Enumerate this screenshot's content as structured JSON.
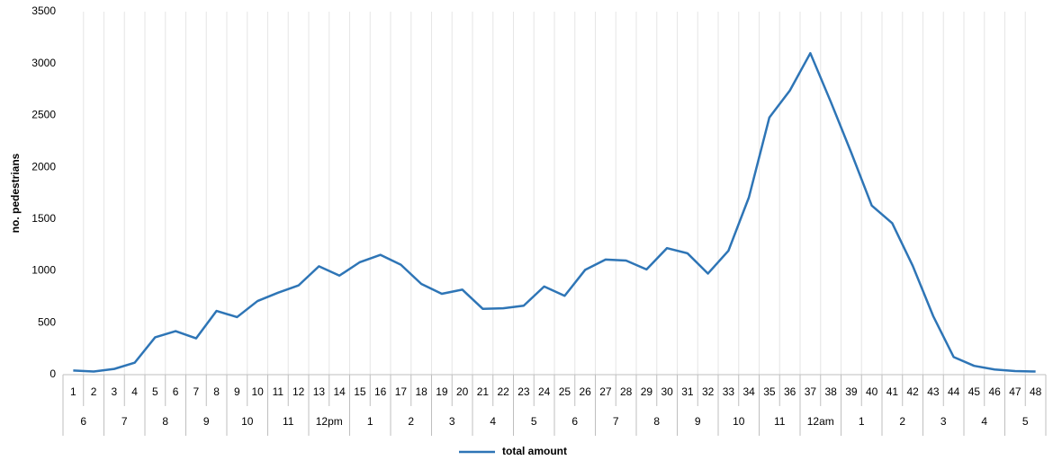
{
  "chart_data": {
    "type": "line",
    "y_label": "no. pedestrians",
    "categories": [
      "1",
      "2",
      "3",
      "4",
      "5",
      "6",
      "7",
      "8",
      "9",
      "10",
      "11",
      "12",
      "13",
      "14",
      "15",
      "16",
      "17",
      "18",
      "19",
      "20",
      "21",
      "22",
      "23",
      "24",
      "25",
      "26",
      "27",
      "28",
      "29",
      "30",
      "31",
      "32",
      "33",
      "34",
      "35",
      "36",
      "37",
      "38",
      "39",
      "40",
      "41",
      "42",
      "43",
      "44",
      "45",
      "46",
      "47",
      "48"
    ],
    "groups": [
      "6",
      "7",
      "8",
      "9",
      "10",
      "11",
      "12pm",
      "1",
      "2",
      "3",
      "4",
      "5",
      "6",
      "7",
      "8",
      "9",
      "10",
      "11",
      "12am",
      "1",
      "2",
      "3",
      "4",
      "5"
    ],
    "series": [
      {
        "name": "total amount",
        "color": "#2e75b6",
        "values": [
          40,
          30,
          55,
          115,
          360,
          420,
          350,
          615,
          555,
          710,
          790,
          860,
          1045,
          955,
          1085,
          1155,
          1060,
          875,
          780,
          820,
          635,
          640,
          665,
          850,
          760,
          1010,
          1110,
          1100,
          1015,
          1220,
          1170,
          975,
          1195,
          1710,
          2480,
          2740,
          3100,
          2630,
          2140,
          1630,
          1460,
          1050,
          565,
          170,
          85,
          50,
          35,
          30
        ]
      }
    ],
    "ylim": [
      0,
      3500
    ],
    "yticks": [
      0,
      500,
      1000,
      1500,
      2000,
      2500,
      3000,
      3500
    ],
    "grid": true,
    "legend": "bottom"
  }
}
